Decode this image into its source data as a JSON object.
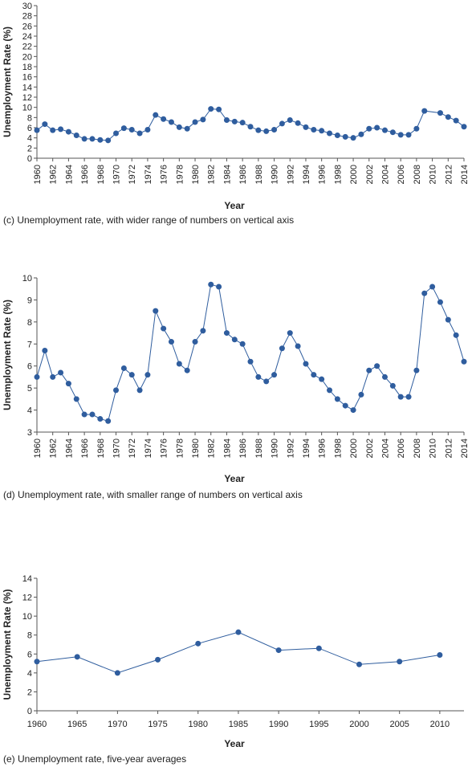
{
  "chart_data": [
    {
      "type": "line",
      "title": "",
      "caption": "(c) Unemployment rate, with wider range of numbers on vertical axis",
      "xlabel": "Year",
      "ylabel": "Unemployment Rate (%)",
      "xlim": [
        1960,
        2014
      ],
      "ylim": [
        0,
        30
      ],
      "xticks": [
        "1960",
        "1962",
        "1964",
        "1966",
        "1968",
        "1970",
        "1972",
        "1974",
        "1976",
        "1978",
        "1980",
        "1982",
        "1984",
        "1986",
        "1988",
        "1990",
        "1992",
        "1994",
        "1996",
        "1998",
        "2000",
        "2002",
        "2004",
        "2006",
        "2008",
        "2010",
        "2012",
        "2014"
      ],
      "yticks": [
        "0",
        "2",
        "4",
        "6",
        "8",
        "10",
        "12",
        "14",
        "16",
        "18",
        "20",
        "22",
        "24",
        "26",
        "28",
        "30"
      ],
      "grid": false,
      "color": "#2f5d9e",
      "series": [
        {
          "x": [
            1960,
            1961,
            1962,
            1963,
            1964,
            1965,
            1966,
            1967,
            1968,
            1969,
            1970,
            1971,
            1972,
            1973,
            1974,
            1975,
            1976,
            1977,
            1978,
            1979,
            1980,
            1981,
            1982,
            1983,
            1984,
            1985,
            1986,
            1987,
            1988,
            1989,
            1990,
            1991,
            1992,
            1993,
            1994,
            1995,
            1996,
            1997,
            1998,
            1999,
            2000,
            2001,
            2002,
            2003,
            2004,
            2005,
            2006,
            2007,
            2008,
            2009,
            2011,
            2012,
            2013,
            2014
          ],
          "y": [
            5.5,
            6.7,
            5.5,
            5.7,
            5.2,
            4.5,
            3.8,
            3.8,
            3.6,
            3.5,
            4.9,
            5.9,
            5.6,
            4.9,
            5.6,
            8.5,
            7.7,
            7.1,
            6.1,
            5.8,
            7.1,
            7.6,
            9.7,
            9.6,
            7.5,
            7.2,
            7.0,
            6.2,
            5.5,
            5.3,
            5.6,
            6.8,
            7.5,
            6.9,
            6.1,
            5.6,
            5.4,
            4.9,
            4.5,
            4.2,
            4.0,
            4.7,
            5.8,
            6.0,
            5.5,
            5.1,
            4.6,
            4.6,
            5.8,
            9.3,
            8.9,
            8.1,
            7.4,
            6.2
          ]
        }
      ]
    },
    {
      "type": "line",
      "title": "",
      "caption": "(d) Unemployment rate, with smaller range of numbers on vertical axis",
      "xlabel": "Year",
      "ylabel": "Unemployment Rate (%)",
      "xlim": [
        1960,
        2014
      ],
      "ylim": [
        3,
        10
      ],
      "xticks": [
        "1960",
        "1962",
        "1964",
        "1966",
        "1968",
        "1970",
        "1972",
        "1974",
        "1976",
        "1978",
        "1980",
        "1982",
        "1984",
        "1986",
        "1988",
        "1990",
        "1992",
        "1994",
        "1996",
        "1998",
        "2000",
        "2002",
        "2004",
        "2006",
        "2008",
        "2010",
        "2012",
        "2014"
      ],
      "yticks": [
        "3",
        "4",
        "5",
        "6",
        "7",
        "8",
        "9",
        "10"
      ],
      "grid": false,
      "color": "#2f5d9e",
      "series": [
        {
          "x": [
            1960,
            1961,
            1962,
            1963,
            1964,
            1965,
            1966,
            1967,
            1968,
            1969,
            1970,
            1971,
            1972,
            1973,
            1974,
            1975,
            1976,
            1977,
            1978,
            1979,
            1980,
            1981,
            1982,
            1983,
            1984,
            1985,
            1986,
            1987,
            1988,
            1989,
            1990,
            1991,
            1992,
            1993,
            1994,
            1995,
            1996,
            1997,
            1998,
            1999,
            2000,
            2001,
            2002,
            2003,
            2004,
            2005,
            2006,
            2007,
            2008,
            2009,
            2010,
            2011,
            2012,
            2013,
            2014
          ],
          "y": [
            5.5,
            6.7,
            5.5,
            5.7,
            5.2,
            4.5,
            3.8,
            3.8,
            3.6,
            3.5,
            4.9,
            5.9,
            5.6,
            4.9,
            5.6,
            8.5,
            7.7,
            7.1,
            6.1,
            5.8,
            7.1,
            7.6,
            9.7,
            9.6,
            7.5,
            7.2,
            7.0,
            6.2,
            5.5,
            5.3,
            5.6,
            6.8,
            7.5,
            6.9,
            6.1,
            5.6,
            5.4,
            4.9,
            4.5,
            4.2,
            4.0,
            4.7,
            5.8,
            6.0,
            5.5,
            5.1,
            4.6,
            4.6,
            5.8,
            9.3,
            9.6,
            8.9,
            8.1,
            7.4,
            6.2
          ]
        }
      ]
    },
    {
      "type": "line",
      "title": "",
      "caption": "(e) Unemployment rate, five-year averages",
      "xlabel": "Year",
      "ylabel": "Unemployment Rate (%)",
      "xlim": [
        1960,
        2013
      ],
      "ylim": [
        0,
        14
      ],
      "xticks": [
        "1960",
        "1965",
        "1970",
        "1975",
        "1980",
        "1985",
        "1990",
        "1995",
        "2000",
        "2005",
        "2010"
      ],
      "yticks": [
        "0",
        "2",
        "4",
        "6",
        "8",
        "10",
        "12",
        "14"
      ],
      "grid": false,
      "color": "#2f5d9e",
      "series": [
        {
          "x": [
            1960,
            1965,
            1970,
            1975,
            1980,
            1985,
            1990,
            1995,
            2000,
            2005,
            2010
          ],
          "y": [
            5.2,
            5.7,
            4.0,
            5.4,
            7.1,
            8.3,
            6.4,
            6.6,
            4.9,
            5.2,
            5.9
          ]
        }
      ]
    }
  ]
}
